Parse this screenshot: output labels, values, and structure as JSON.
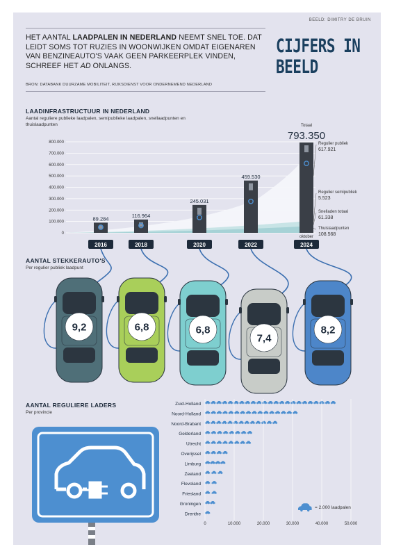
{
  "credit": "BEELD: DIMITRY DE BRUIN",
  "headline": {
    "pre": "HET AANTAL ",
    "bold": "LAADPALEN IN NEDERLAND",
    "mid": " NEEMT SNEL TOE. DAT LEIDT SOMS TOT RUZIES IN WOONWIJKEN OMDAT EIGENAREN VAN BENZINEAUTO'S VAAK GEEN PARKEERPLEK VINDEN, SCHREEF HET ",
    "italic": "AD",
    "post": " ONLANGS."
  },
  "source": "BRON: DATABANK DUURZAME MOBILITEIT, RIJKSDIENST VOOR ONDERNEMEND NEDERLAND",
  "logo": "CIJFERS IN BEELD",
  "colors": {
    "background": "#e3e3ee",
    "navy": "#1d2a3a",
    "charger": "#3a3f47",
    "cable": "#3b6fb0",
    "area_light": "#f2f3f8",
    "area_teal": "#bfdde0",
    "sign_blue": "#4d8fd0",
    "car_icon": "#4d8fd0"
  },
  "chart_data": [
    {
      "type": "bar",
      "title": "LAADINFRASTRUCTUUR IN NEDERLAND",
      "subtitle": "Aantal reguliere publieke laadpalen, semipublieke laadpalen, snellaadpunten en thuislaadpunten",
      "categories": [
        "2016",
        "2018",
        "2020",
        "2022",
        "2024"
      ],
      "values": [
        89284,
        116964,
        245031,
        459530,
        793350
      ],
      "value_labels": [
        "89.284",
        "116.964",
        "245.031",
        "459.530",
        "793.350"
      ],
      "ylim": [
        0,
        800000
      ],
      "y_ticks": [
        0,
        100000,
        200000,
        300000,
        400000,
        500000,
        600000,
        700000,
        800000
      ],
      "y_tick_labels": [
        "0",
        "100.000",
        "200.000",
        "300.000",
        "400.000",
        "500.000",
        "600.000",
        "700.000",
        "800.000"
      ],
      "grid": true,
      "total_label": "Totaal",
      "month_label": "oktober",
      "breakdown_2024": [
        {
          "name": "Regulier publiek",
          "value": 617921,
          "label": "617.921"
        },
        {
          "name": "Regulier semipubliek",
          "value": 5523,
          "label": "5.523"
        },
        {
          "name": "Snelladen totaal",
          "value": 61338,
          "label": "61.338"
        },
        {
          "name": "Thuislaadpunten",
          "value": 108568,
          "label": "108.568"
        }
      ]
    },
    {
      "type": "bar",
      "title": "AANTAL STEKKERAUTO'S",
      "subtitle": "Per regulier publiek laadpunt",
      "categories": [
        "2016",
        "2018",
        "2020",
        "2022",
        "2024"
      ],
      "values": [
        9.2,
        6.8,
        6.8,
        7.4,
        8.2
      ],
      "value_labels": [
        "9,2",
        "6,8",
        "6,8",
        "7,4",
        "8,2"
      ],
      "car_colors": [
        "#4f6f78",
        "#a9cf5a",
        "#7ecfcf",
        "#c8ccc8",
        "#4d86c9"
      ]
    },
    {
      "type": "bar",
      "title": "AANTAL REGULIERE LADERS",
      "subtitle": "Per provincie",
      "orientation": "horizontal",
      "categories": [
        "Zuid-Holland",
        "Noord-Holland",
        "Noord-Brabant",
        "Gelderland",
        "Utrecht",
        "Overijssel",
        "Limburg",
        "Zeeland",
        "Flevoland",
        "Friesland",
        "Groningen",
        "Drenthe"
      ],
      "values": [
        45000,
        32000,
        25000,
        16500,
        16000,
        8000,
        7000,
        6500,
        4500,
        4500,
        3500,
        2500
      ],
      "xlim": [
        0,
        50000
      ],
      "x_ticks": [
        0,
        10000,
        20000,
        30000,
        40000,
        50000
      ],
      "x_tick_labels": [
        "0",
        "10.000",
        "20.000",
        "30.000",
        "40.000",
        "50.000"
      ],
      "unit": 2000,
      "legend_label": "= 2.000 laadpalen"
    }
  ]
}
